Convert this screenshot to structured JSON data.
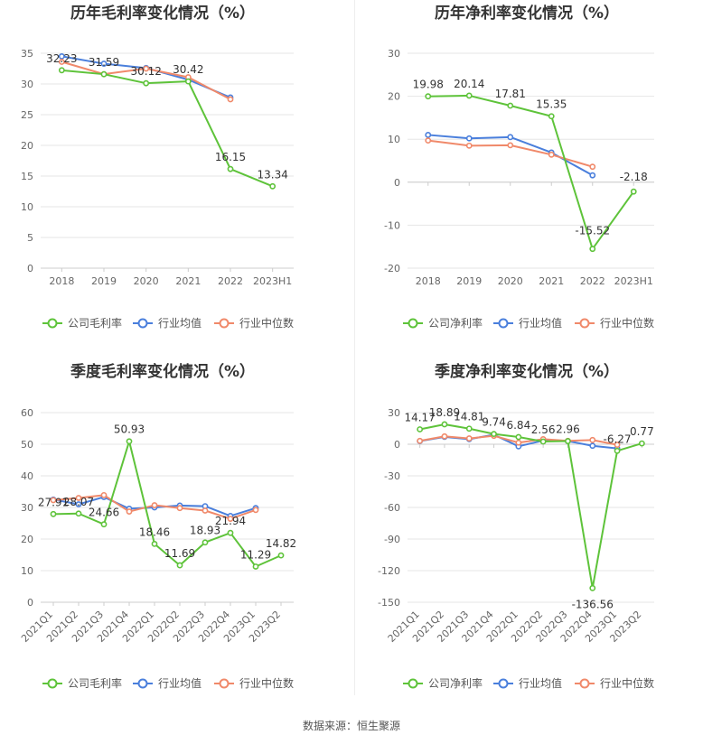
{
  "colors": {
    "company": "#5ec33a",
    "avg": "#4a7fdc",
    "median": "#f0896a"
  },
  "legend_labels": {
    "gross": [
      "公司毛利率",
      "行业均值",
      "行业中位数"
    ],
    "net": [
      "公司净利率",
      "行业均值",
      "行业中位数"
    ]
  },
  "source": "数据来源：恒生聚源",
  "chart_data": [
    {
      "type": "line",
      "title": "历年毛利率变化情况（%）",
      "categories": [
        "2018",
        "2019",
        "2020",
        "2021",
        "2022",
        "2023H1"
      ],
      "ylim": [
        0,
        35
      ],
      "yticks": [
        0,
        5,
        10,
        15,
        20,
        25,
        30,
        35
      ],
      "legend_position": "bottom",
      "series": [
        {
          "name": "公司毛利率",
          "values": [
            32.23,
            31.59,
            30.12,
            30.42,
            16.15,
            13.34
          ],
          "labels": [
            "32.23",
            "31.59",
            "30.12",
            "30.42",
            "16.15",
            "13.34"
          ]
        },
        {
          "name": "行业均值",
          "values": [
            34.5,
            33.3,
            32.6,
            30.7,
            27.8,
            null
          ]
        },
        {
          "name": "行业中位数",
          "values": [
            33.6,
            31.6,
            32.5,
            31.1,
            27.5,
            null
          ]
        }
      ]
    },
    {
      "type": "line",
      "title": "历年净利率变化情况（%）",
      "categories": [
        "2018",
        "2019",
        "2020",
        "2021",
        "2022",
        "2023H1"
      ],
      "ylim": [
        -20,
        30
      ],
      "yticks": [
        -20,
        -10,
        0,
        10,
        20,
        30
      ],
      "legend_position": "bottom",
      "series": [
        {
          "name": "公司净利率",
          "values": [
            19.98,
            20.14,
            17.81,
            15.35,
            -15.52,
            -2.18
          ],
          "labels": [
            "19.98",
            "20.14",
            "17.81",
            "15.35",
            "-15.52",
            "-2.18"
          ]
        },
        {
          "name": "行业均值",
          "values": [
            11.0,
            10.2,
            10.5,
            6.9,
            1.6,
            null
          ]
        },
        {
          "name": "行业中位数",
          "values": [
            9.7,
            8.5,
            8.6,
            6.4,
            3.6,
            null
          ]
        }
      ]
    },
    {
      "type": "line",
      "title": "季度毛利率变化情况（%）",
      "categories": [
        "2021Q1",
        "2021Q2",
        "2021Q3",
        "2021Q4",
        "2022Q1",
        "2022Q2",
        "2022Q3",
        "2022Q4",
        "2023Q1",
        "2023Q2"
      ],
      "ylim": [
        0,
        60
      ],
      "yticks": [
        0,
        10,
        20,
        30,
        40,
        50,
        60
      ],
      "legend_position": "bottom",
      "series": [
        {
          "name": "公司毛利率",
          "values": [
            27.91,
            28.07,
            24.66,
            50.93,
            18.46,
            11.69,
            18.93,
            21.94,
            11.29,
            14.82
          ],
          "labels": [
            "27.91",
            "28.07",
            "24.66",
            "50.93",
            "18.46",
            "11.69",
            "18.93",
            "21.94",
            "11.29",
            "14.82"
          ]
        },
        {
          "name": "行业均值",
          "values": [
            32.5,
            31.0,
            33.3,
            29.6,
            30.0,
            30.6,
            30.4,
            27.3,
            29.8,
            null
          ]
        },
        {
          "name": "行业中位数",
          "values": [
            32.3,
            33.0,
            33.9,
            28.7,
            30.7,
            29.8,
            29.0,
            26.4,
            29.2,
            null
          ]
        }
      ]
    },
    {
      "type": "line",
      "title": "季度净利率变化情况（%）",
      "categories": [
        "2021Q1",
        "2021Q2",
        "2021Q3",
        "2021Q4",
        "2022Q1",
        "2022Q2",
        "2022Q3",
        "2022Q4",
        "2023Q1",
        "2023Q2"
      ],
      "ylim": [
        -150,
        30
      ],
      "yticks": [
        -150,
        -120,
        -90,
        -60,
        -30,
        0,
        30
      ],
      "legend_position": "bottom",
      "series": [
        {
          "name": "公司净利率",
          "values": [
            14.17,
            18.89,
            14.81,
            9.74,
            6.84,
            2.56,
            2.96,
            -136.56,
            -6.27,
            0.77
          ],
          "labels": [
            "14.17",
            "18.89",
            "14.81",
            "9.74",
            "6.84",
            "2.56",
            "2.96",
            "-136.56",
            "-6.27",
            "0.77"
          ]
        },
        {
          "name": "行业均值",
          "values": [
            3.0,
            7.0,
            4.8,
            9.0,
            -2.0,
            3.5,
            3.0,
            -1.5,
            -4.0,
            null
          ]
        },
        {
          "name": "行业中位数",
          "values": [
            3.2,
            7.5,
            5.5,
            8.0,
            1.5,
            4.8,
            3.2,
            4.0,
            -0.5,
            null
          ]
        }
      ]
    }
  ]
}
